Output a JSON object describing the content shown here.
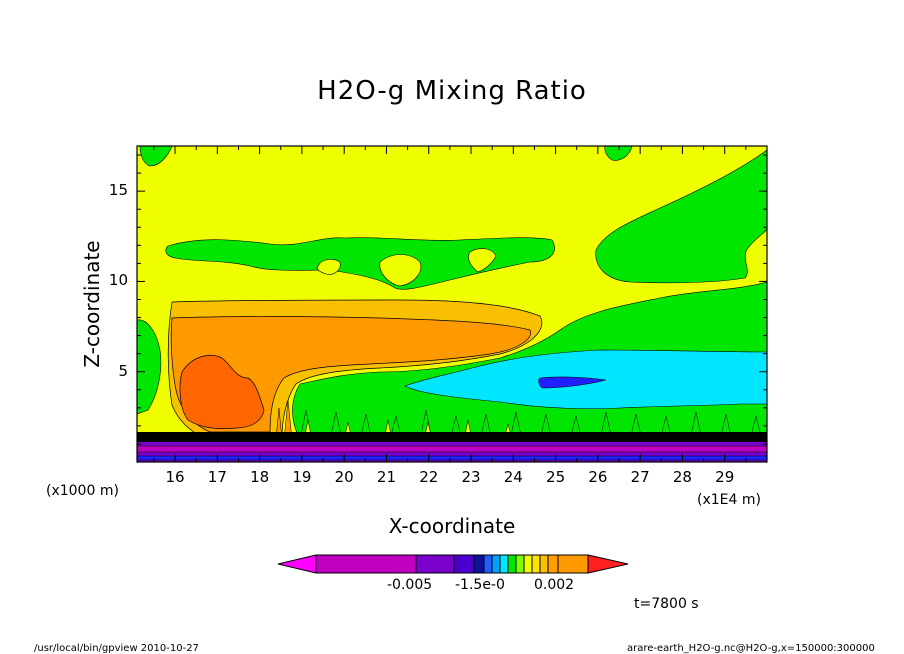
{
  "chart_data": {
    "type": "contour",
    "title": "H2O-g Mixing Ratio",
    "xlabel": "X-coordinate",
    "ylabel": "Z-coordinate",
    "x_unit_left": "(x1000 m)",
    "x_unit_right": "(x1E4 m)",
    "xlim": [
      15.1,
      30
    ],
    "ylim": [
      0,
      17.5
    ],
    "xticks": [
      "16",
      "17",
      "18",
      "19",
      "20",
      "21",
      "22",
      "23",
      "24",
      "25",
      "26",
      "27",
      "28",
      "29"
    ],
    "xtick_values": [
      16,
      17,
      18,
      19,
      20,
      21,
      22,
      23,
      24,
      25,
      26,
      27,
      28,
      29
    ],
    "yticks": [
      "5",
      "10",
      "15"
    ],
    "ytick_values": [
      5,
      10,
      15
    ],
    "colorbar_labels": [
      "-0.005",
      "-1.5e-0",
      "0.002"
    ],
    "time_label": "t=7800 s",
    "colors": {
      "yellow": "#f0ff00",
      "green": "#00e600",
      "cyan": "#00e6ff",
      "orange": "#ff9900",
      "light_orange": "#f8c000",
      "red_orange": "#ff6600",
      "purple": "#7a00cc",
      "magenta": "#c000c0",
      "dark_blue": "#2020ff"
    }
  },
  "footer": {
    "left": "/usr/local/bin/gpview  2010-10-27",
    "right": "arare-earth_H2O-g.nc@H2O-g,x=150000:300000"
  }
}
